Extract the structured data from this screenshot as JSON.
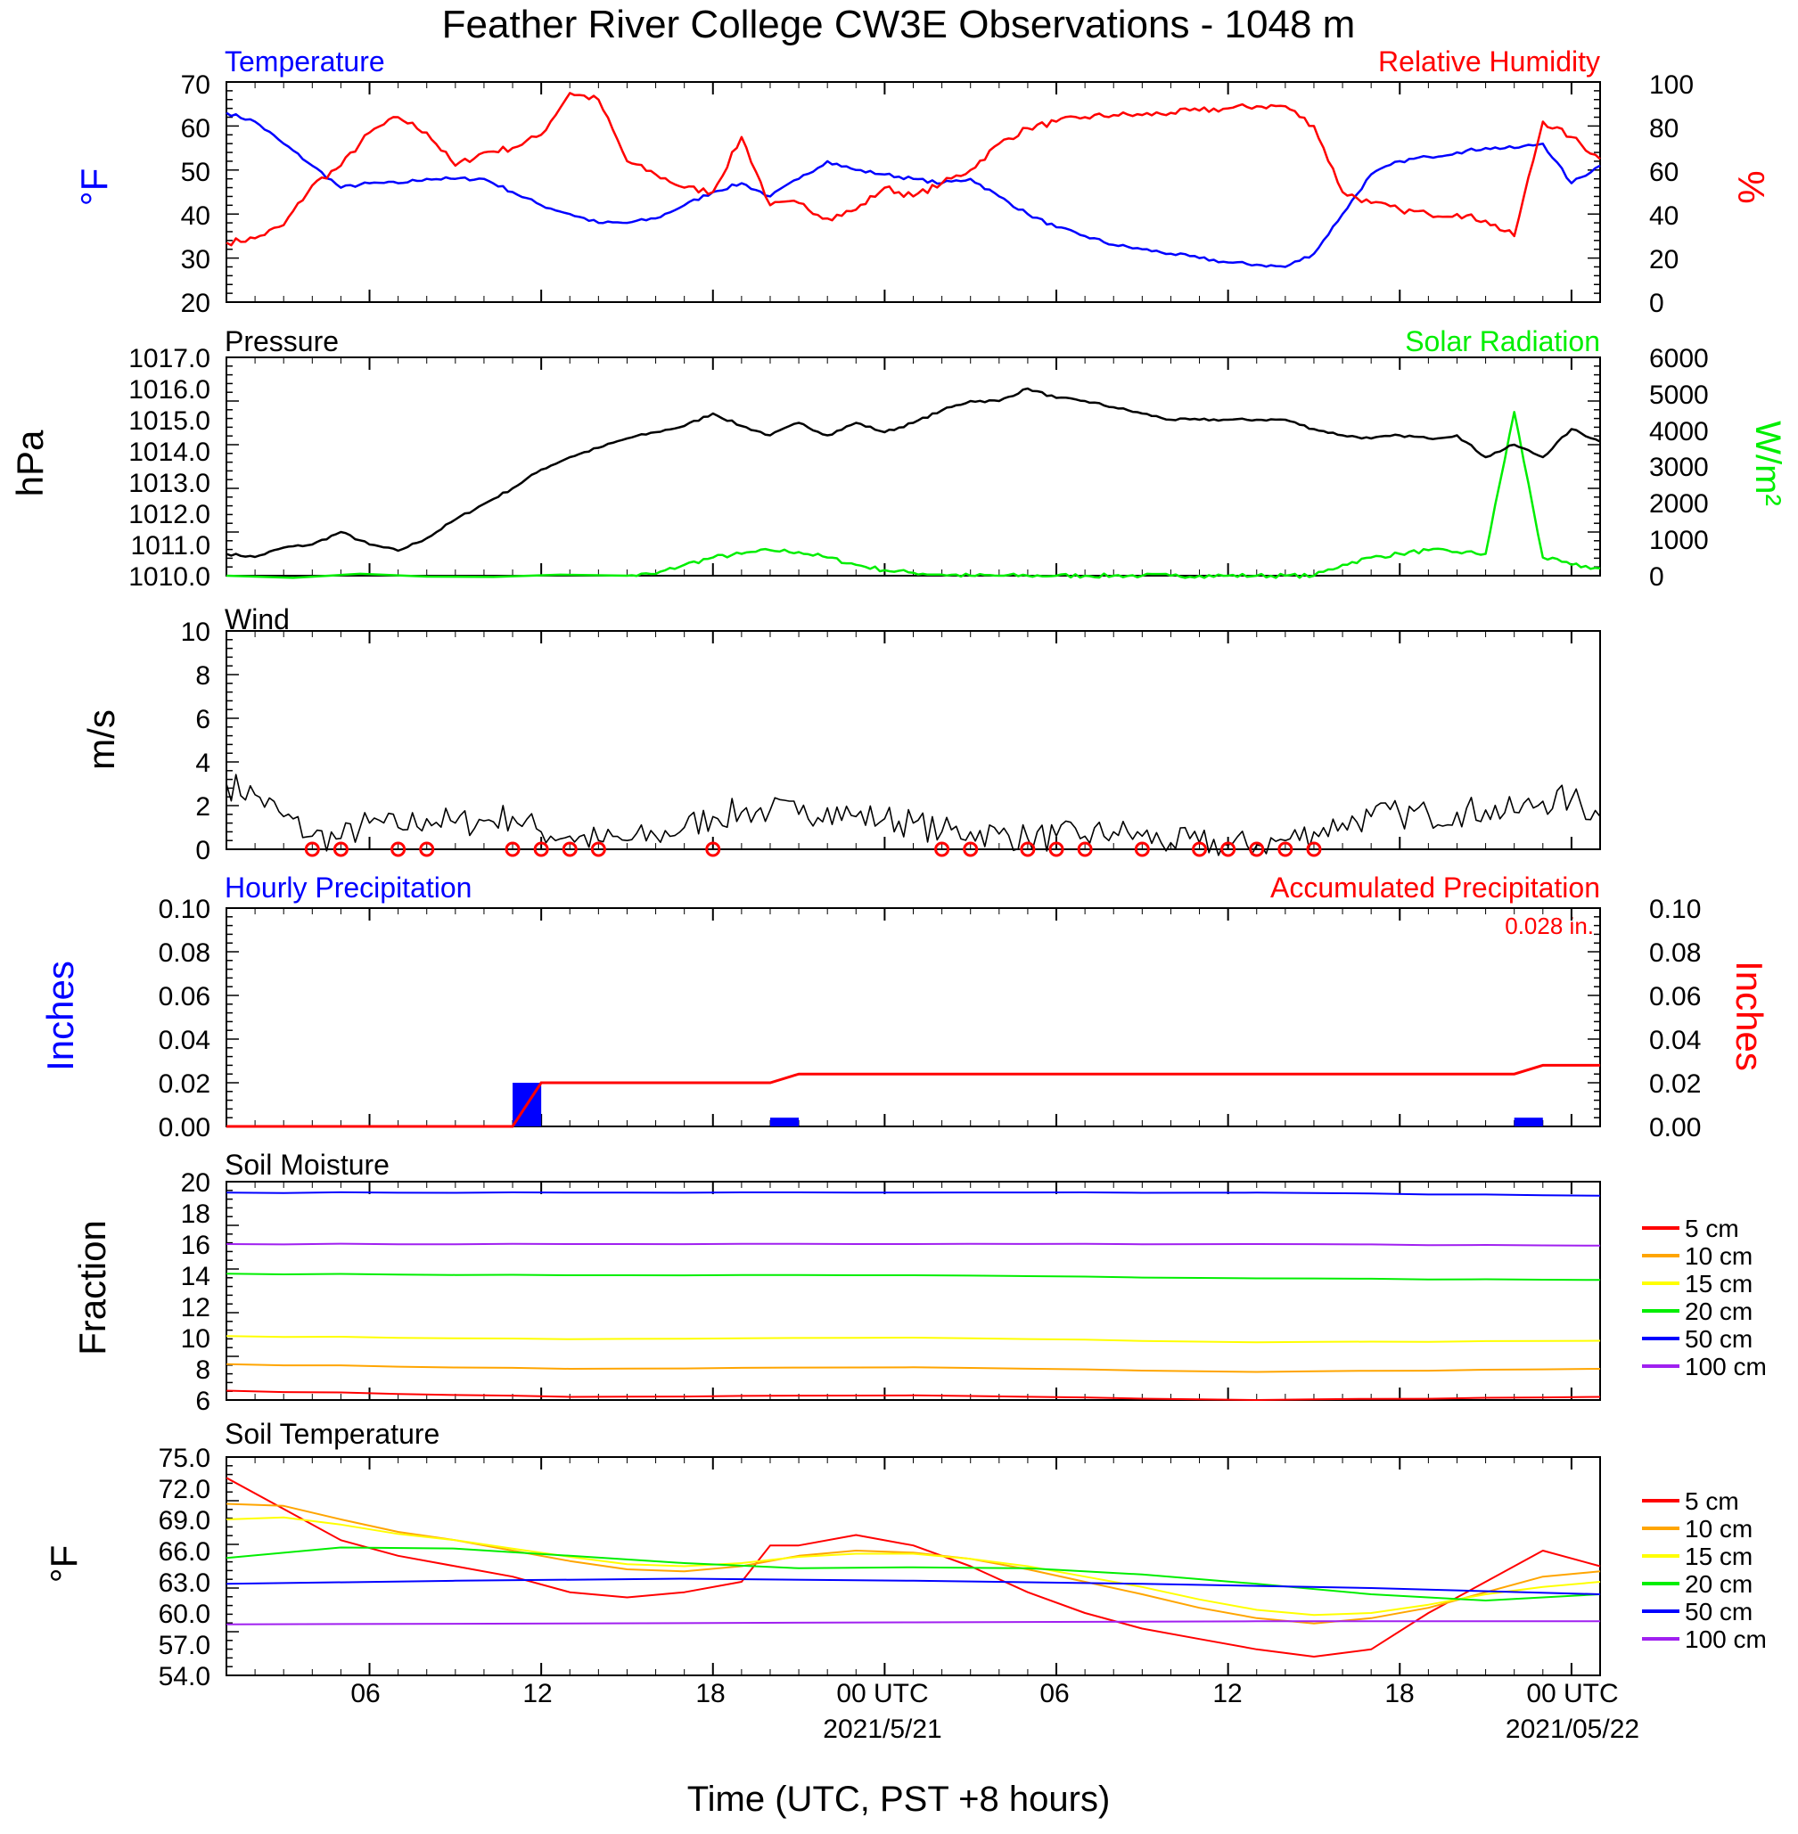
{
  "title": "Feather River College CW3E Observations - 1048 m",
  "x_axis": {
    "label": "Time (UTC, PST +8 hours)",
    "range": [
      0,
      48
    ],
    "ticks": [
      {
        "hour": 5,
        "label": "06"
      },
      {
        "hour": 11,
        "label": "12"
      },
      {
        "hour": 17,
        "label": "18"
      },
      {
        "hour": 23,
        "label": "00 UTC"
      },
      {
        "hour": 29,
        "label": "06"
      },
      {
        "hour": 35,
        "label": "12"
      },
      {
        "hour": 41,
        "label": "18"
      },
      {
        "hour": 47,
        "label": "00 UTC"
      }
    ],
    "date_labels": [
      {
        "hour": 23,
        "label": "2021/5/21"
      },
      {
        "hour": 47,
        "label": "2021/05/22"
      }
    ]
  },
  "colors": {
    "temperature": "#0000ff",
    "humidity": "#ff0000",
    "pressure": "#000000",
    "solar": "#00ee00",
    "wind_speed": "#000000",
    "wind_barb": "#ff0000",
    "hourly_precip": "#0000ff",
    "accum_precip": "#ff0000"
  },
  "panels": {
    "temp_rh": {
      "left_title": "Temperature",
      "right_title": "Relative Humidity",
      "left_unit": "°F",
      "right_unit": "%",
      "left_ticks": [
        "20",
        "30",
        "40",
        "50",
        "60",
        "70"
      ],
      "right_ticks": [
        "0",
        "20",
        "40",
        "60",
        "80",
        "100"
      ]
    },
    "pressure_solar": {
      "left_title": "Pressure",
      "right_title": "Solar Radiation",
      "left_unit": "hPa",
      "right_unit": "W/m²",
      "left_ticks": [
        "1010.0",
        "1011.0",
        "1012.0",
        "1013.0",
        "1014.0",
        "1015.0",
        "1016.0",
        "1017.0"
      ],
      "right_ticks": [
        "0",
        "1000",
        "2000",
        "3000",
        "4000",
        "5000",
        "6000"
      ]
    },
    "wind": {
      "left_title": "Wind",
      "left_unit": "m/s",
      "left_ticks": [
        "0",
        "2",
        "4",
        "6",
        "8",
        "10"
      ]
    },
    "precip": {
      "left_title": "Hourly Precipitation",
      "right_title": "Accumulated Precipitation",
      "total_label": "0.028 in.",
      "left_unit": "Inches",
      "right_unit": "Inches",
      "left_ticks": [
        "0.00",
        "0.02",
        "0.04",
        "0.06",
        "0.08",
        "0.10"
      ],
      "right_ticks": [
        "0.00",
        "0.02",
        "0.04",
        "0.06",
        "0.08",
        "0.10"
      ]
    },
    "soil_moisture": {
      "left_title": "Soil Moisture",
      "left_unit": "Fraction",
      "left_ticks": [
        "6",
        "8",
        "10",
        "12",
        "14",
        "16",
        "18",
        "20"
      ],
      "legend": [
        "5 cm",
        "10 cm",
        "15 cm",
        "20 cm",
        "50 cm",
        "100 cm"
      ]
    },
    "soil_temperature": {
      "left_title": "Soil Temperature",
      "left_unit": "°F",
      "left_ticks": [
        "54.0",
        "57.0",
        "60.0",
        "63.0",
        "66.0",
        "69.0",
        "72.0",
        "75.0"
      ],
      "legend": [
        "5 cm",
        "10 cm",
        "15 cm",
        "20 cm",
        "50 cm",
        "100 cm"
      ]
    }
  },
  "chart_data": [
    {
      "type": "line",
      "title": "Temperature / Relative Humidity",
      "x_unit": "hours from 2021-05-20 01 UTC",
      "ylim_left": [
        20,
        70
      ],
      "ylim_right": [
        0,
        100
      ],
      "series": [
        {
          "name": "Temperature",
          "axis": "left",
          "color": "#0000ff",
          "x": [
            0,
            1,
            2,
            3,
            4,
            5,
            6,
            7,
            8,
            9,
            10,
            11,
            12,
            13,
            14,
            15,
            16,
            17,
            18,
            19,
            20,
            21,
            22,
            23,
            24,
            25,
            26,
            27,
            28,
            29,
            30,
            31,
            32,
            33,
            34,
            35,
            36,
            37,
            38,
            39,
            40,
            41,
            42,
            43,
            44,
            45,
            46,
            47,
            48
          ],
          "y": [
            63,
            61,
            56,
            51,
            46,
            47,
            47,
            48,
            48,
            48,
            45,
            42,
            40,
            38,
            38,
            39,
            42,
            45,
            47,
            44,
            48,
            52,
            50,
            49,
            48,
            47,
            48,
            44,
            40,
            37,
            35,
            33,
            32,
            31,
            30,
            29,
            28.5,
            28,
            31,
            40,
            49,
            52,
            53,
            54,
            55,
            55,
            56,
            47,
            51
          ]
        },
        {
          "name": "Relative Humidity",
          "axis": "right",
          "color": "#ff0000",
          "x": [
            0,
            1,
            2,
            3,
            4,
            5,
            6,
            7,
            8,
            9,
            10,
            11,
            12,
            13,
            14,
            15,
            16,
            17,
            18,
            19,
            20,
            21,
            22,
            23,
            24,
            25,
            26,
            27,
            28,
            29,
            30,
            31,
            32,
            33,
            34,
            35,
            36,
            37,
            38,
            39,
            40,
            41,
            42,
            43,
            44,
            45,
            46,
            47,
            48
          ],
          "y": [
            27,
            29,
            35,
            53,
            62,
            77,
            84,
            77,
            62,
            68,
            70,
            76,
            95,
            92,
            64,
            58,
            52,
            50,
            75,
            44,
            45,
            38,
            42,
            52,
            48,
            54,
            60,
            72,
            79,
            82,
            84,
            85,
            85,
            86,
            87,
            88,
            89,
            89,
            80,
            50,
            45,
            42,
            40,
            40,
            37,
            30,
            82,
            75,
            65
          ]
        }
      ]
    },
    {
      "type": "line",
      "title": "Pressure / Solar Radiation",
      "ylim_left": [
        1010,
        1017
      ],
      "ylim_right": [
        0,
        6000
      ],
      "series": [
        {
          "name": "Pressure",
          "axis": "left",
          "color": "#000000",
          "x": [
            0,
            1,
            2,
            3,
            4,
            5,
            6,
            7,
            8,
            9,
            10,
            11,
            12,
            13,
            14,
            15,
            16,
            17,
            18,
            19,
            20,
            21,
            22,
            23,
            24,
            25,
            26,
            27,
            28,
            29,
            30,
            31,
            32,
            33,
            34,
            35,
            36,
            37,
            38,
            39,
            40,
            41,
            42,
            43,
            44,
            45,
            46,
            47,
            48
          ],
          "y": [
            1010.7,
            1010.6,
            1010.9,
            1011.0,
            1011.4,
            1011.0,
            1010.8,
            1011.2,
            1011.8,
            1012.3,
            1012.8,
            1013.4,
            1013.8,
            1014.1,
            1014.4,
            1014.6,
            1014.8,
            1015.2,
            1014.8,
            1014.5,
            1014.9,
            1014.5,
            1014.9,
            1014.6,
            1014.9,
            1015.3,
            1015.6,
            1015.6,
            1016.0,
            1015.7,
            1015.6,
            1015.4,
            1015.2,
            1015.0,
            1015.0,
            1015.0,
            1015.0,
            1015.0,
            1014.7,
            1014.5,
            1014.4,
            1014.5,
            1014.4,
            1014.5,
            1013.8,
            1014.2,
            1013.8,
            1014.7,
            1014.3
          ]
        },
        {
          "name": "Solar Radiation",
          "axis": "right",
          "color": "#00ee00",
          "x": [
            0,
            14,
            15,
            16,
            17,
            18,
            19,
            20,
            21,
            22,
            23,
            24,
            25,
            26,
            27,
            28,
            29,
            30,
            31,
            32,
            33,
            34,
            35,
            36,
            37,
            38,
            39,
            40,
            41,
            42,
            43,
            44,
            45,
            46,
            47,
            48
          ],
          "y": [
            0,
            0,
            50,
            300,
            500,
            600,
            700,
            650,
            500,
            300,
            150,
            80,
            30,
            0,
            0,
            0,
            0,
            0,
            0,
            0,
            0,
            0,
            0,
            0,
            0,
            0,
            300,
            500,
            600,
            700,
            650,
            600,
            4500,
            500,
            300,
            200
          ]
        }
      ]
    },
    {
      "type": "line",
      "title": "Wind",
      "ylim": [
        0,
        10
      ],
      "series": [
        {
          "name": "Wind",
          "color": "#000000",
          "x": [
            0,
            1,
            2,
            3,
            4,
            5,
            6,
            7,
            8,
            9,
            10,
            11,
            12,
            13,
            14,
            15,
            16,
            17,
            18,
            19,
            20,
            21,
            22,
            23,
            24,
            25,
            26,
            27,
            28,
            29,
            30,
            31,
            32,
            33,
            34,
            35,
            36,
            37,
            38,
            39,
            40,
            41,
            42,
            43,
            44,
            45,
            46,
            47,
            48
          ],
          "y": [
            3,
            2.5,
            1.5,
            0.6,
            0.5,
            1.2,
            1,
            1.4,
            1.2,
            1.3,
            1.5,
            0.8,
            0.6,
            0.4,
            0.4,
            0.6,
            1,
            1.5,
            1.7,
            1.8,
            1.6,
            1.9,
            1.5,
            1.4,
            1.2,
            0.8,
            0.8,
            0.7,
            0.5,
            0.6,
            0.6,
            0.8,
            0.6,
            0.3,
            0.3,
            0.2,
            0.2,
            0.4,
            0.8,
            1.2,
            1.5,
            1.6,
            1.6,
            1.7,
            1.8,
            1.7,
            2.2,
            2.3,
            1.5
          ]
        }
      ],
      "calm_markers_hours": [
        3,
        4,
        6,
        7,
        10,
        11,
        12,
        13,
        17,
        25,
        26,
        28,
        29,
        30,
        32,
        34,
        35,
        36,
        37,
        38
      ]
    },
    {
      "type": "bar",
      "title": "Hourly Precipitation / Accumulated Precipitation",
      "ylim": [
        0,
        0.1
      ],
      "series": [
        {
          "name": "Hourly Precipitation",
          "axis": "left",
          "color": "#0000ff",
          "x": [
            10,
            19,
            45
          ],
          "y": [
            0.02,
            0.004,
            0.004
          ]
        },
        {
          "name": "Accumulated Precipitation",
          "axis": "right",
          "color": "#ff0000",
          "x": [
            0,
            10,
            11,
            19,
            20,
            45,
            46,
            48
          ],
          "y": [
            0,
            0,
            0.02,
            0.02,
            0.024,
            0.024,
            0.028,
            0.028
          ]
        }
      ]
    },
    {
      "type": "line",
      "title": "Soil Moisture",
      "ylim": [
        6,
        20
      ],
      "series": [
        {
          "name": "5 cm",
          "color": "#ff0000",
          "x": [
            0,
            12,
            24,
            36,
            48
          ],
          "y": [
            6.6,
            6.2,
            6.3,
            6.0,
            6.2
          ]
        },
        {
          "name": "10 cm",
          "color": "#ffa500",
          "x": [
            0,
            12,
            24,
            36,
            48
          ],
          "y": [
            8.3,
            8.0,
            8.1,
            7.8,
            8.0
          ]
        },
        {
          "name": "15 cm",
          "color": "#ffff00",
          "x": [
            0,
            12,
            24,
            36,
            48
          ],
          "y": [
            10.1,
            9.9,
            10.0,
            9.7,
            9.8
          ]
        },
        {
          "name": "20 cm",
          "color": "#00ee00",
          "x": [
            0,
            12,
            24,
            36,
            48
          ],
          "y": [
            14.1,
            14.0,
            14.0,
            13.8,
            13.7
          ]
        },
        {
          "name": "50 cm",
          "color": "#0000ff",
          "x": [
            0,
            12,
            24,
            36,
            48
          ],
          "y": [
            19.3,
            19.3,
            19.3,
            19.3,
            19.1
          ]
        },
        {
          "name": "100 cm",
          "color": "#a020f0",
          "x": [
            0,
            12,
            24,
            36,
            48
          ],
          "y": [
            16.0,
            16.0,
            16.0,
            16.0,
            15.9
          ]
        }
      ]
    },
    {
      "type": "line",
      "title": "Soil Temperature",
      "ylim": [
        54,
        75
      ],
      "series": [
        {
          "name": "5 cm",
          "color": "#ff0000",
          "x": [
            0,
            2,
            4,
            6,
            8,
            10,
            12,
            14,
            16,
            18,
            19,
            20,
            22,
            24,
            26,
            28,
            30,
            32,
            34,
            36,
            38,
            40,
            42,
            44,
            46,
            48
          ],
          "y": [
            73,
            70,
            67,
            65.5,
            64.5,
            63.5,
            62,
            61.5,
            62,
            63,
            66.5,
            66.5,
            67.5,
            66.5,
            64.5,
            62,
            60,
            58.5,
            57.5,
            56.5,
            55.8,
            56.5,
            60,
            63,
            66,
            64.5
          ]
        },
        {
          "name": "10 cm",
          "color": "#ffa500",
          "x": [
            0,
            2,
            4,
            6,
            8,
            10,
            12,
            14,
            16,
            18,
            20,
            22,
            24,
            26,
            28,
            30,
            32,
            34,
            36,
            38,
            40,
            42,
            44,
            46,
            48
          ],
          "y": [
            70.5,
            70.3,
            69,
            67.8,
            67,
            66,
            65,
            64.2,
            64,
            64.5,
            65.5,
            66,
            65.8,
            65.2,
            64.2,
            63,
            61.8,
            60.5,
            59.5,
            59,
            59.5,
            60.5,
            62,
            63.5,
            64
          ]
        },
        {
          "name": "15 cm",
          "color": "#ffff00",
          "x": [
            0,
            2,
            4,
            6,
            8,
            10,
            12,
            14,
            16,
            18,
            20,
            22,
            24,
            26,
            28,
            30,
            32,
            34,
            36,
            38,
            40,
            42,
            44,
            46,
            48
          ],
          "y": [
            69,
            69.2,
            68.5,
            67.6,
            67,
            66.2,
            65.4,
            64.7,
            64.5,
            64.8,
            65.4,
            65.7,
            65.7,
            65.2,
            64.5,
            63.5,
            62.5,
            61.3,
            60.3,
            59.8,
            60,
            60.8,
            61.8,
            62.5,
            63
          ]
        },
        {
          "name": "20 cm",
          "color": "#00ee00",
          "x": [
            0,
            4,
            8,
            12,
            16,
            20,
            24,
            28,
            32,
            36,
            40,
            44,
            48
          ],
          "y": [
            65.3,
            66.3,
            66.2,
            65.5,
            64.8,
            64.3,
            64.4,
            64.3,
            63.7,
            62.8,
            61.8,
            61.2,
            61.8
          ]
        },
        {
          "name": "50 cm",
          "color": "#0000ff",
          "x": [
            0,
            8,
            16,
            24,
            32,
            40,
            48
          ],
          "y": [
            62.8,
            63.1,
            63.3,
            63.1,
            62.8,
            62.4,
            61.8
          ]
        },
        {
          "name": "100 cm",
          "color": "#a020f0",
          "x": [
            0,
            12,
            24,
            36,
            48
          ],
          "y": [
            58.9,
            59,
            59.1,
            59.2,
            59.2
          ]
        }
      ]
    }
  ]
}
